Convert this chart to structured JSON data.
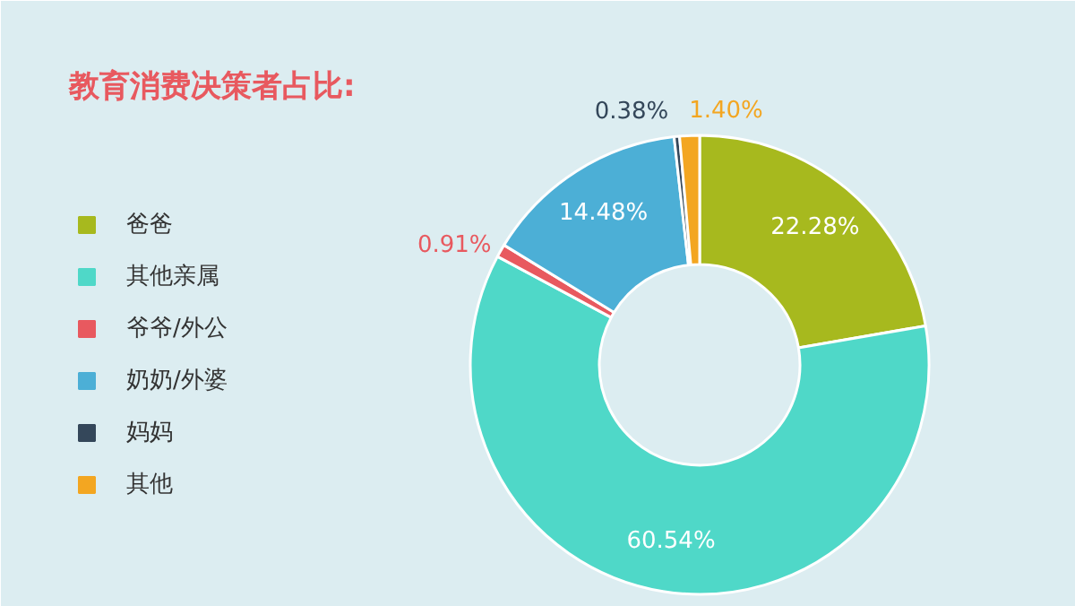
{
  "chart_data": {
    "type": "donut",
    "title": "教育消费决策者占比:",
    "categories": [
      "爸爸",
      "其他亲属",
      "爷爷/外公",
      "奶奶/外婆",
      "妈妈",
      "其他"
    ],
    "values": [
      22.28,
      60.54,
      0.91,
      14.48,
      0.38,
      1.4
    ],
    "colors": [
      "#a7b91e",
      "#4fd8c8",
      "#e8595f",
      "#4cafd6",
      "#34475a",
      "#f3a621"
    ],
    "value_labels": [
      "22.28%",
      "60.54%",
      "0.91%",
      "14.48%",
      "0.38%",
      "1.40%"
    ],
    "legend": "left"
  }
}
